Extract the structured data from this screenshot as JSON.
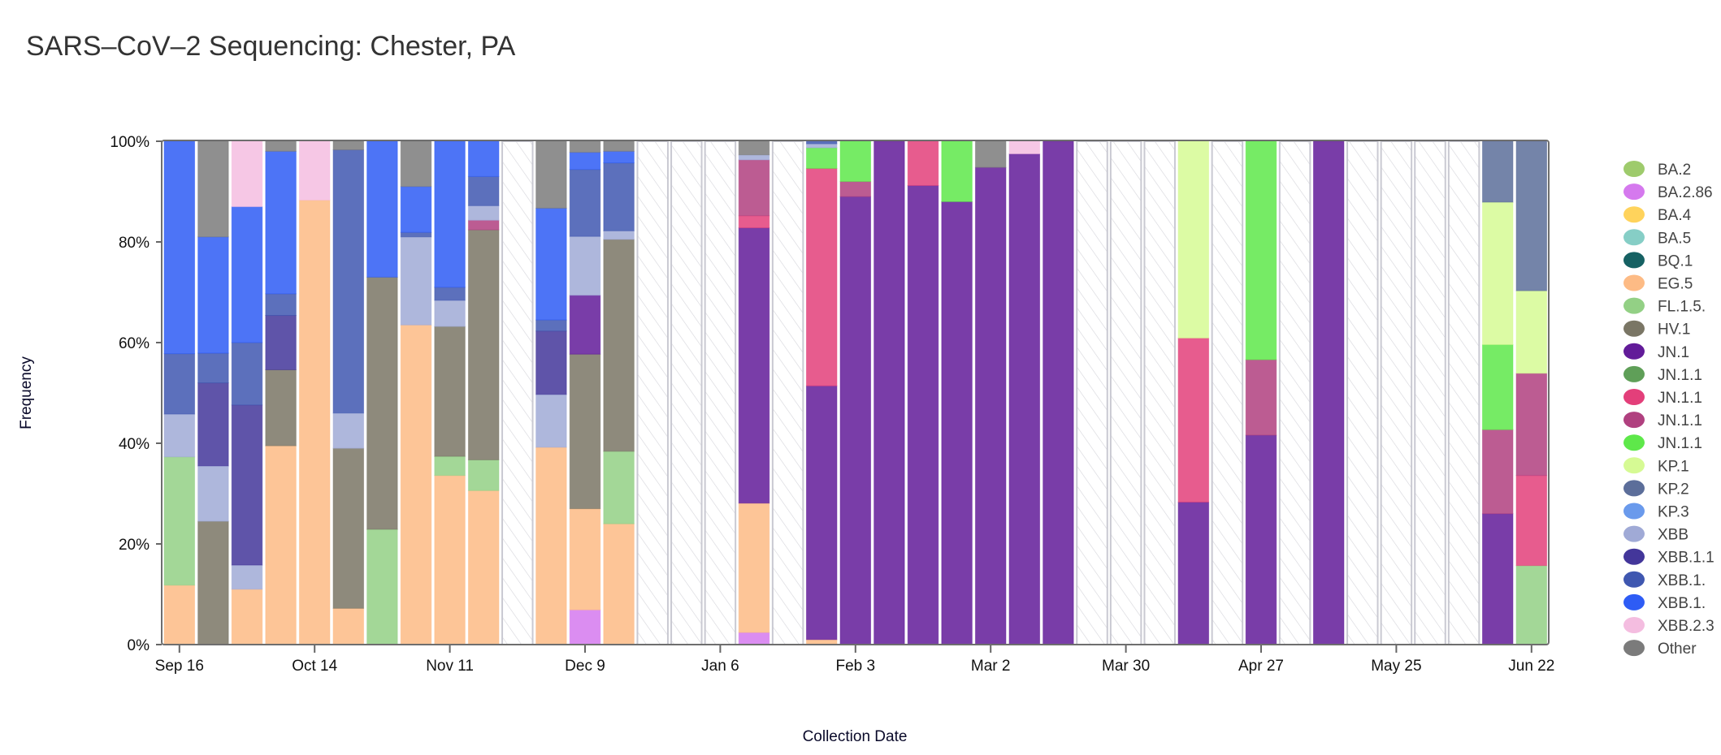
{
  "chart_data": {
    "type": "bar",
    "stacked": true,
    "title": "SARS–CoV–2 Sequencing: Chester, PA",
    "xlabel": "Collection Date",
    "ylabel": "Frequency",
    "ylim": [
      0,
      100
    ],
    "y_ticks": [
      "0%",
      "20%",
      "40%",
      "60%",
      "80%",
      "100%"
    ],
    "x_ticks": [
      {
        "index": 0,
        "label": "Sep 16"
      },
      {
        "index": 4,
        "label": "Oct 14"
      },
      {
        "index": 8,
        "label": "Nov 11"
      },
      {
        "index": 12,
        "label": "Dec 9"
      },
      {
        "index": 16,
        "label": "Jan 6"
      },
      {
        "index": 20,
        "label": "Feb 3"
      },
      {
        "index": 24,
        "label": "Mar 2"
      },
      {
        "index": 28,
        "label": "Mar 30"
      },
      {
        "index": 32,
        "label": "Apr 27"
      },
      {
        "index": 36,
        "label": "May 25"
      },
      {
        "index": 40,
        "label": "Jun 22"
      }
    ],
    "legend_placement": "right",
    "series": [
      {
        "name": "BA.2",
        "color": "#9ecb6c"
      },
      {
        "name": "BA.2.86",
        "color": "#d579ee"
      },
      {
        "name": "BA.4",
        "color": "#ffd35c"
      },
      {
        "name": "BA.5",
        "color": "#86cec6"
      },
      {
        "name": "BQ.1",
        "color": "#166163"
      },
      {
        "name": "EG.5",
        "color": "#fdbb85"
      },
      {
        "name": "FL.1.5.",
        "color": "#93d085"
      },
      {
        "name": "HV.1",
        "color": "#7a7665"
      },
      {
        "name": "JN.1",
        "color": "#621b99"
      },
      {
        "name": "JN.1.1",
        "color": "#5f9f58"
      },
      {
        "name": "JN.1.1",
        "color": "#e33f7a"
      },
      {
        "name": "JN.1.1",
        "color": "#b0407f"
      },
      {
        "name": "JN.1.1",
        "color": "#5ee84a"
      },
      {
        "name": "KP.1",
        "color": "#d6fa94"
      },
      {
        "name": "KP.2",
        "color": "#5c6e9a"
      },
      {
        "name": "KP.3",
        "color": "#6a9aec"
      },
      {
        "name": "XBB",
        "color": "#a0aad6"
      },
      {
        "name": "XBB.1.1",
        "color": "#43369a"
      },
      {
        "name": "XBB.1.",
        "color": "#3f57b0"
      },
      {
        "name": "XBB.1.",
        "color": "#2e5cf5"
      },
      {
        "name": "XBB.2.3",
        "color": "#f4bde0"
      },
      {
        "name": "Other",
        "color": "#7b7b7b"
      }
    ],
    "bars_note": "each bar: list of [series_index, cumulative_top_percent] from bottom; empty = no data",
    "bars": [
      [
        [
          5,
          11.8
        ],
        [
          6,
          37.3
        ],
        [
          16,
          45.8
        ],
        [
          18,
          57.8
        ],
        [
          19,
          100
        ]
      ],
      [
        [
          7,
          24.5
        ],
        [
          16,
          35.5
        ],
        [
          17,
          52
        ],
        [
          18,
          57.9
        ],
        [
          19,
          81
        ],
        [
          21,
          100
        ]
      ],
      [
        [
          5,
          11
        ],
        [
          16,
          15.8
        ],
        [
          17,
          47.6
        ],
        [
          18,
          60
        ],
        [
          19,
          87
        ],
        [
          20,
          100
        ]
      ],
      [
        [
          5,
          39.5
        ],
        [
          7,
          54.6
        ],
        [
          17,
          65.4
        ],
        [
          18,
          69.7
        ],
        [
          19,
          98
        ],
        [
          21,
          100
        ]
      ],
      [
        [
          5,
          88.3
        ],
        [
          20,
          100
        ]
      ],
      [
        [
          5,
          7.2
        ],
        [
          7,
          39
        ],
        [
          16,
          46
        ],
        [
          18,
          98.3
        ],
        [
          21,
          100
        ]
      ],
      [
        [
          6,
          22.9
        ],
        [
          7,
          73
        ],
        [
          19,
          100
        ]
      ],
      [
        [
          5,
          63.5
        ],
        [
          16,
          81
        ],
        [
          18,
          81.9
        ],
        [
          19,
          91
        ],
        [
          21,
          100
        ]
      ],
      [
        [
          5,
          33.6
        ],
        [
          6,
          37.4
        ],
        [
          7,
          63.2
        ],
        [
          16,
          68.4
        ],
        [
          18,
          71
        ],
        [
          19,
          100
        ]
      ],
      [
        [
          5,
          30.6
        ],
        [
          6,
          36.7
        ],
        [
          7,
          82.4
        ],
        [
          11,
          84.3
        ],
        [
          16,
          87.2
        ],
        [
          18,
          93
        ],
        [
          19,
          100
        ]
      ],
      [],
      [
        [
          5,
          39.2
        ],
        [
          16,
          49.7
        ],
        [
          17,
          62.3
        ],
        [
          18,
          64.5
        ],
        [
          19,
          86.7
        ],
        [
          21,
          100
        ]
      ],
      [
        [
          1,
          6.9
        ],
        [
          5,
          27
        ],
        [
          7,
          57.7
        ],
        [
          8,
          69.4
        ],
        [
          16,
          81.1
        ],
        [
          18,
          94.4
        ],
        [
          19,
          97.8
        ],
        [
          21,
          100
        ]
      ],
      [
        [
          5,
          24
        ],
        [
          6,
          38.4
        ],
        [
          7,
          80.5
        ],
        [
          16,
          82.2
        ],
        [
          18,
          95.7
        ],
        [
          19,
          98
        ],
        [
          21,
          100
        ]
      ],
      [],
      [],
      [],
      [
        [
          1,
          2.4
        ],
        [
          5,
          28.1
        ],
        [
          8,
          82.8
        ],
        [
          10,
          85.2
        ],
        [
          11,
          96.3
        ],
        [
          16,
          97.3
        ],
        [
          21,
          100
        ]
      ],
      [],
      [
        [
          5,
          1
        ],
        [
          8,
          51.4
        ],
        [
          10,
          94.6
        ],
        [
          12,
          98.7
        ],
        [
          16,
          99.5
        ],
        [
          18,
          100
        ]
      ],
      [
        [
          8,
          89
        ],
        [
          11,
          92
        ],
        [
          12,
          100
        ]
      ],
      [
        [
          8,
          100
        ]
      ],
      [
        [
          8,
          91.2
        ],
        [
          10,
          100
        ]
      ],
      [
        [
          8,
          88
        ],
        [
          12,
          100
        ]
      ],
      [
        [
          8,
          94.8
        ],
        [
          21,
          100
        ]
      ],
      [
        [
          8,
          97.5
        ],
        [
          20,
          100
        ]
      ],
      [
        [
          8,
          100
        ]
      ],
      [],
      [],
      [],
      [
        [
          8,
          28.3
        ],
        [
          10,
          60.9
        ],
        [
          13,
          100
        ]
      ],
      [],
      [
        [
          8,
          41.6
        ],
        [
          11,
          56.6
        ],
        [
          12,
          100
        ]
      ],
      [],
      [
        [
          8,
          100
        ]
      ],
      [],
      [],
      [],
      [],
      [
        [
          8,
          26
        ],
        [
          11,
          42.7
        ],
        [
          12,
          59.6
        ],
        [
          13,
          87.9
        ],
        [
          14,
          100
        ]
      ],
      [
        [
          6,
          15.7
        ],
        [
          10,
          33.6
        ],
        [
          11,
          53.9
        ],
        [
          13,
          70.3
        ],
        [
          14,
          100
        ]
      ]
    ]
  }
}
